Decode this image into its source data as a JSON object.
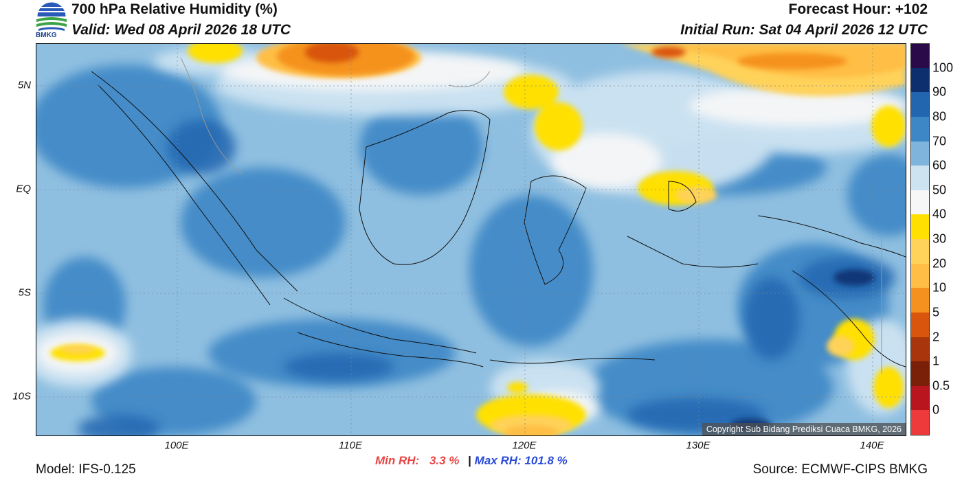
{
  "header": {
    "title": "700 hPa Relative Humidity (%)",
    "valid": "Valid: Wed 08 April 2026 18 UTC",
    "forecast_hour": "Forecast Hour: +102",
    "initial_run": "Initial Run: Sat 04 April 2026 12 UTC"
  },
  "logo": {
    "text": "BMKG"
  },
  "axes": {
    "y_labels": [
      "5N",
      "EQ",
      "5S",
      "10S"
    ],
    "x_labels": [
      "100E",
      "110E",
      "120E",
      "130E",
      "140E"
    ]
  },
  "colorbar": {
    "levels": [
      "100",
      "90",
      "80",
      "70",
      "60",
      "50",
      "40",
      "30",
      "20",
      "10",
      "5",
      "2",
      "1",
      "0.5",
      "0"
    ],
    "colors": [
      "#2b0a4a",
      "#0d2f6e",
      "#2266b0",
      "#3d87c6",
      "#7fb5dc",
      "#cde3f2",
      "#f7f7f7",
      "#ffe000",
      "#ffd25a",
      "#ffbe45",
      "#f5921f",
      "#d9550e",
      "#a8350c",
      "#7a2008",
      "#b8151e",
      "#ee3a3a"
    ]
  },
  "map": {
    "copyright": "Copyright Sub Bidang Prediksi Cuaca BMKG, 2026"
  },
  "stats": {
    "min_label": "Min RH:",
    "min_value": "3.3 %",
    "separator": "|",
    "max_label": "Max RH:",
    "max_value": "101.8 %"
  },
  "footer": {
    "model": "Model: IFS-0.125",
    "source": "Source: ECMWF-CIPS BMKG"
  }
}
